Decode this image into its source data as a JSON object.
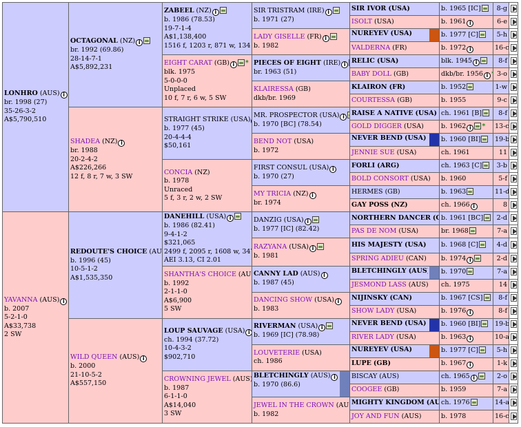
{
  "colors": {
    "male_bg": "#ccccff",
    "female_bg": "#ffcccc",
    "mare_name": "#7711bb",
    "bar_blue": "#2233aa",
    "bar_orange": "#cc5511",
    "bar_slate": "#7080bb"
  },
  "g1": [
    {
      "name": "LONHRO",
      "cty": "(AUS)",
      "sex": "m",
      "bold": true,
      "info": true,
      "pic": true,
      "lines": [
        "br. 1998 (27)",
        "35-26-3-2",
        "A$5,790,510"
      ]
    },
    {
      "name": "YAVANNA",
      "cty": "(AUS)",
      "sex": "f",
      "bold": false,
      "info": true,
      "pic": false,
      "lines": [
        "b. 2007",
        "5-2-1-0",
        "A$33,738",
        "2 SW"
      ]
    }
  ],
  "g2": [
    {
      "name": "OCTAGONAL",
      "cty": "(NZ)",
      "sex": "m",
      "bold": true,
      "info": true,
      "pic": true,
      "lines": [
        "br. 1992 (69.86)",
        "28-14-7-1",
        "A$5,892,231"
      ]
    },
    {
      "name": "SHADEA",
      "cty": "(NZ)",
      "sex": "f",
      "bold": false,
      "info": true,
      "pic": false,
      "lines": [
        "br. 1988",
        "20-2-4-2",
        "A$226,266",
        "12 f, 8 r, 7 w, 3 SW"
      ]
    },
    {
      "name": "REDOUTE'S CHOICE",
      "cty": "(AUS)",
      "sex": "m",
      "bold": true,
      "info": true,
      "pic": false,
      "lines": [
        "b. 1996 (45)",
        "10-5-1-2",
        "A$1,535,350"
      ]
    },
    {
      "name": "WILD QUEEN",
      "cty": "(AUS)",
      "sex": "f",
      "bold": false,
      "info": true,
      "pic": false,
      "lines": [
        "b. 2000",
        "21-10-5-2",
        "A$557,150"
      ]
    }
  ],
  "g3": [
    {
      "name": "ZABEEL",
      "cty": "(NZ)",
      "sex": "m",
      "bold": true,
      "info": true,
      "pic": true,
      "star": false,
      "lines": [
        "b. 1986 (78.53)",
        "19-7-1-4",
        "A$1,138,400",
        "1516 f, 1203 r, 871 w, 134 SW"
      ]
    },
    {
      "name": "EIGHT CARAT",
      "cty": "(GB)",
      "sex": "f",
      "bold": false,
      "info": true,
      "pic": true,
      "star": true,
      "lines": [
        "blk. 1975",
        "5-0-0-0",
        "Unplaced",
        "10 f, 7 r, 6 w, 5 SW"
      ]
    },
    {
      "name": "STRAIGHT STRIKE",
      "cty": "(USA)",
      "sex": "m",
      "bold": false,
      "info": true,
      "pic": false,
      "star": false,
      "lines": [
        "b. 1977 (45)",
        "20-4-4-4",
        "$50,161"
      ]
    },
    {
      "name": "CONCIA",
      "cty": "(NZ)",
      "sex": "f",
      "bold": false,
      "info": false,
      "pic": false,
      "star": false,
      "lines": [
        "b. 1978",
        "Unraced",
        "5 f, 3 r, 2 w, 2 SW"
      ]
    },
    {
      "name": "DANEHILL",
      "cty": "(USA)",
      "sex": "m",
      "bold": true,
      "info": true,
      "pic": true,
      "star": false,
      "lines": [
        "b. 1986 (82.41)",
        "9-4-1-2",
        "$321,065",
        "2499 f, 2095 r, 1608 w, 347 SW",
        "AEI 3.13, CI 2.01"
      ]
    },
    {
      "name": "SHANTHA'S CHOICE",
      "cty": "(AUS)",
      "sex": "f",
      "bold": false,
      "info": true,
      "pic": false,
      "star": false,
      "lines": [
        "b. 1992",
        "2-1-1-0",
        "A$6,900",
        "5 SW"
      ]
    },
    {
      "name": "LOUP SAUVAGE",
      "cty": "(USA)",
      "sex": "m",
      "bold": true,
      "info": true,
      "pic": false,
      "star": false,
      "lines": [
        "ch. 1994 (37.72)",
        "10-4-3-2",
        "$902,710"
      ]
    },
    {
      "name": "CROWNING JEWEL",
      "cty": "(AUS)",
      "sex": "f",
      "bold": false,
      "info": false,
      "pic": false,
      "star": false,
      "lines": [
        "b. 1987",
        "6-1-1-0",
        "A$14,040",
        "3 SW"
      ]
    }
  ],
  "g4": [
    {
      "name": "SIR TRISTRAM",
      "cty": "(IRE)",
      "sex": "m",
      "bold": false,
      "info": true,
      "pic": true,
      "bar": "",
      "lines": [
        "b. 1971 (27)"
      ]
    },
    {
      "name": "LADY GISELLE",
      "cty": "(FR)",
      "sex": "f",
      "bold": false,
      "info": true,
      "pic": true,
      "bar": "",
      "lines": [
        "b. 1982"
      ]
    },
    {
      "name": "PIECES OF EIGHT",
      "cty": "(IRE)",
      "sex": "m",
      "bold": true,
      "info": true,
      "pic": true,
      "bar": "",
      "lines": [
        "br. 1963 (51)"
      ]
    },
    {
      "name": "KLAIRESSA",
      "cty": "(GB)",
      "sex": "f",
      "bold": false,
      "info": false,
      "pic": false,
      "bar": "",
      "lines": [
        "dkb/br. 1969"
      ]
    },
    {
      "name": "MR. PROSPECTOR",
      "cty": "(USA)",
      "sex": "m",
      "bold": false,
      "info": true,
      "pic": true,
      "bar": "",
      "lines": [
        "b. 1970 [BC] (78.54)"
      ]
    },
    {
      "name": "BEND NOT",
      "cty": "(USA)",
      "sex": "f",
      "bold": false,
      "info": false,
      "pic": false,
      "bar": "",
      "lines": [
        "b. 1972"
      ]
    },
    {
      "name": "FIRST CONSUL",
      "cty": "(USA)",
      "sex": "m",
      "bold": false,
      "info": true,
      "pic": false,
      "bar": "",
      "lines": [
        "b. 1970 (27)"
      ]
    },
    {
      "name": "MY TRICIA",
      "cty": "(NZ)",
      "sex": "f",
      "bold": false,
      "info": true,
      "pic": false,
      "bar": "",
      "lines": [
        "br. 1974"
      ]
    },
    {
      "name": "DANZIG",
      "cty": "(USA)",
      "sex": "m",
      "bold": false,
      "info": true,
      "pic": true,
      "bar": "",
      "lines": [
        "b. 1977 [IC] (82.42)"
      ]
    },
    {
      "name": "RAZYANA",
      "cty": "(USA)",
      "sex": "f",
      "bold": false,
      "info": true,
      "pic": true,
      "bar": "",
      "lines": [
        "b. 1981"
      ]
    },
    {
      "name": "CANNY LAD",
      "cty": "(AUS)",
      "sex": "m",
      "bold": true,
      "info": true,
      "pic": false,
      "bar": "",
      "lines": [
        "b. 1987 (45)"
      ]
    },
    {
      "name": "DANCING SHOW",
      "cty": "(USA)",
      "sex": "f",
      "bold": false,
      "info": true,
      "pic": false,
      "bar": "",
      "lines": [
        "b. 1983"
      ]
    },
    {
      "name": "RIVERMAN",
      "cty": "(USA)",
      "sex": "m",
      "bold": true,
      "info": true,
      "pic": true,
      "bar": "",
      "lines": [
        "b. 1969 [IC] (78.98)"
      ]
    },
    {
      "name": "LOUVETERIE",
      "cty": "(USA)",
      "sex": "f",
      "bold": false,
      "info": false,
      "pic": false,
      "bar": "",
      "lines": [
        "ch. 1986"
      ]
    },
    {
      "name": "BLETCHINGLY",
      "cty": "(AUS)",
      "sex": "m",
      "bold": true,
      "info": true,
      "pic": true,
      "bar": "slate",
      "lines": [
        "b. 1970 (86.6)"
      ]
    },
    {
      "name": "JEWEL IN THE CROWN",
      "cty": "(AUS)",
      "sex": "f",
      "bold": false,
      "info": true,
      "pic": false,
      "bar": "",
      "lines": [
        "b. 1982"
      ]
    }
  ],
  "g5": [
    {
      "name": "SIR IVOR",
      "cty": "(USA)",
      "sex": "m",
      "bold": true,
      "info": false,
      "pic": false,
      "star": false,
      "bar": "",
      "detail": "b. 1965 [IC]",
      "dinfo": false,
      "dpic": true,
      "tail": "8-g"
    },
    {
      "name": "ISOLT",
      "cty": "(USA)",
      "sex": "f",
      "bold": false,
      "info": false,
      "pic": false,
      "star": false,
      "bar": "",
      "detail": "b. 1961",
      "dinfo": true,
      "dpic": false,
      "tail": "6-e"
    },
    {
      "name": "NUREYEV",
      "cty": "(USA)",
      "sex": "m",
      "bold": true,
      "info": false,
      "pic": false,
      "star": false,
      "bar": "orange",
      "detail": "b. 1977 [C]",
      "dinfo": false,
      "dpic": true,
      "tail": "5-h"
    },
    {
      "name": "VALDERNA",
      "cty": "(FR)",
      "sex": "f",
      "bold": false,
      "info": false,
      "pic": false,
      "star": false,
      "bar": "",
      "detail": "b. 1972",
      "dinfo": true,
      "dpic": false,
      "tail": "16-c"
    },
    {
      "name": "RELIC",
      "cty": "(USA)",
      "sex": "m",
      "bold": true,
      "info": false,
      "pic": false,
      "star": false,
      "bar": "",
      "detail": "blk. 1945",
      "dinfo": true,
      "dpic": true,
      "tail": "8-f"
    },
    {
      "name": "BABY DOLL",
      "cty": "(GB)",
      "sex": "f",
      "bold": false,
      "info": false,
      "pic": false,
      "star": false,
      "bar": "",
      "detail": "dkb/br. 1956",
      "dinfo": true,
      "dpic": false,
      "dstar": true,
      "tail": "3-o"
    },
    {
      "name": "KLAIRON",
      "cty": "(FR)",
      "sex": "m",
      "bold": true,
      "info": false,
      "pic": false,
      "star": false,
      "bar": "",
      "detail": "b. 1952",
      "dinfo": false,
      "dpic": true,
      "tail": "1-w"
    },
    {
      "name": "COURTESSA",
      "cty": "(GB)",
      "sex": "f",
      "bold": false,
      "info": false,
      "pic": false,
      "star": false,
      "bar": "",
      "detail": "b. 1955",
      "dinfo": false,
      "dpic": false,
      "tail": "9-c"
    },
    {
      "name": "RAISE A NATIVE",
      "cty": "(USA)",
      "sex": "m",
      "bold": true,
      "info": false,
      "pic": false,
      "star": false,
      "bar": "",
      "detail": "ch. 1961 [B]",
      "dinfo": false,
      "dpic": true,
      "tail": "8-f"
    },
    {
      "name": "GOLD DIGGER",
      "cty": "(USA)",
      "sex": "f",
      "bold": false,
      "info": false,
      "pic": false,
      "star": false,
      "bar": "",
      "detail": "b. 1962",
      "dinfo": true,
      "dpic": true,
      "dstar": true,
      "tail": "13-c"
    },
    {
      "name": "NEVER BEND",
      "cty": "(USA)",
      "sex": "m",
      "bold": true,
      "info": false,
      "pic": false,
      "star": false,
      "bar": "blue",
      "detail": "b. 1960 [BI]",
      "dinfo": false,
      "dpic": true,
      "tail": "19-b"
    },
    {
      "name": "JENNIE SUE",
      "cty": "(USA)",
      "sex": "f",
      "bold": false,
      "info": false,
      "pic": false,
      "star": false,
      "bar": "",
      "detail": "ch. 1961",
      "dinfo": false,
      "dpic": false,
      "tail": "11"
    },
    {
      "name": "FORLI",
      "cty": "(ARG)",
      "sex": "m",
      "bold": true,
      "info": false,
      "pic": false,
      "star": false,
      "bar": "",
      "detail": "ch. 1963 [C]",
      "dinfo": false,
      "dpic": true,
      "tail": "3-b"
    },
    {
      "name": "BOLD CONSORT",
      "cty": "(USA)",
      "sex": "f",
      "bold": false,
      "info": false,
      "pic": false,
      "star": false,
      "bar": "",
      "detail": "b. 1960",
      "dinfo": false,
      "dpic": false,
      "tail": "5-f"
    },
    {
      "name": "HERMES",
      "cty": "(GB)",
      "sex": "m",
      "bold": false,
      "info": false,
      "pic": false,
      "star": false,
      "bar": "",
      "detail": "b. 1963",
      "dinfo": false,
      "dpic": true,
      "tail": "11-d"
    },
    {
      "name": "GAY POSS",
      "cty": "(NZ)",
      "sex": "f",
      "bold": true,
      "info": false,
      "pic": false,
      "star": false,
      "bar": "",
      "detail": "ch. 1966",
      "dinfo": true,
      "dpic": false,
      "tail": "8"
    },
    {
      "name": "NORTHERN DANCER",
      "cty": "(CAN)",
      "sex": "m",
      "bold": true,
      "info": false,
      "pic": false,
      "star": false,
      "bar": "",
      "detail": "b. 1961 [BC]",
      "dinfo": false,
      "dpic": true,
      "tail": "2-d"
    },
    {
      "name": "PAS DE NOM",
      "cty": "(USA)",
      "sex": "f",
      "bold": false,
      "info": false,
      "pic": false,
      "star": false,
      "bar": "",
      "detail": "br. 1968",
      "dinfo": false,
      "dpic": true,
      "tail": "7-a"
    },
    {
      "name": "HIS MAJESTY",
      "cty": "(USA)",
      "sex": "m",
      "bold": true,
      "info": false,
      "pic": false,
      "star": false,
      "bar": "",
      "detail": "b. 1968 [C]",
      "dinfo": false,
      "dpic": true,
      "tail": "4-d"
    },
    {
      "name": "SPRING ADIEU",
      "cty": "(CAN)",
      "sex": "f",
      "bold": false,
      "info": false,
      "pic": false,
      "star": false,
      "bar": "",
      "detail": "b. 1974",
      "dinfo": true,
      "dpic": true,
      "tail": "2-d"
    },
    {
      "name": "BLETCHINGLY",
      "cty": "(AUS)",
      "sex": "m",
      "bold": true,
      "info": false,
      "pic": false,
      "star": false,
      "bar": "slate",
      "detail": "b. 1970",
      "dinfo": false,
      "dpic": true,
      "tail": "7-a"
    },
    {
      "name": "JESMOND LASS",
      "cty": "(AUS)",
      "sex": "f",
      "bold": false,
      "info": false,
      "pic": false,
      "star": false,
      "bar": "",
      "detail": "ch. 1975",
      "dinfo": false,
      "dpic": false,
      "tail": "14"
    },
    {
      "name": "NIJINSKY",
      "cty": "(CAN)",
      "sex": "m",
      "bold": true,
      "info": false,
      "pic": false,
      "star": false,
      "bar": "",
      "detail": "b. 1967 [CS]",
      "dinfo": false,
      "dpic": true,
      "tail": "8-f"
    },
    {
      "name": "SHOW LADY",
      "cty": "(USA)",
      "sex": "f",
      "bold": false,
      "info": false,
      "pic": false,
      "star": false,
      "bar": "",
      "detail": "b. 1976",
      "dinfo": true,
      "dpic": false,
      "tail": "8-f"
    },
    {
      "name": "NEVER BEND",
      "cty": "(USA)",
      "sex": "m",
      "bold": true,
      "info": false,
      "pic": false,
      "star": false,
      "bar": "blue",
      "detail": "b. 1960 [BI]",
      "dinfo": false,
      "dpic": true,
      "tail": "19-b"
    },
    {
      "name": "RIVER LADY",
      "cty": "(USA)",
      "sex": "f",
      "bold": false,
      "info": false,
      "pic": false,
      "star": false,
      "bar": "",
      "detail": "b. 1963",
      "dinfo": true,
      "dpic": false,
      "tail": "10-a"
    },
    {
      "name": "NUREYEV",
      "cty": "(USA)",
      "sex": "m",
      "bold": true,
      "info": false,
      "pic": false,
      "star": false,
      "bar": "orange",
      "detail": "b. 1977 [C]",
      "dinfo": false,
      "dpic": true,
      "tail": "5-h"
    },
    {
      "name": "LUPE",
      "cty": "(GB)",
      "sex": "f",
      "bold": true,
      "info": false,
      "pic": false,
      "star": false,
      "bar": "",
      "detail": "b. 1967",
      "dinfo": true,
      "dpic": false,
      "tail": "1-k"
    },
    {
      "name": "BISCAY",
      "cty": "(AUS)",
      "sex": "m",
      "bold": false,
      "info": false,
      "pic": false,
      "star": false,
      "bar": "",
      "detail": "ch. 1965",
      "dinfo": true,
      "dpic": true,
      "tail": "2-o"
    },
    {
      "name": "COOGEE",
      "cty": "(GB)",
      "sex": "f",
      "bold": false,
      "info": false,
      "pic": false,
      "star": false,
      "bar": "",
      "detail": "b. 1959",
      "dinfo": false,
      "dpic": false,
      "tail": "7-a"
    },
    {
      "name": "MIGHTY KINGDOM",
      "cty": "(AUS)",
      "sex": "m",
      "bold": true,
      "info": false,
      "pic": false,
      "star": false,
      "bar": "",
      "detail": "ch. 1976",
      "dinfo": false,
      "dpic": true,
      "tail": "14-a"
    },
    {
      "name": "JOY AND FUN",
      "cty": "(AUS)",
      "sex": "f",
      "bold": false,
      "info": false,
      "pic": false,
      "star": false,
      "bar": "",
      "detail": "b. 1978",
      "dinfo": false,
      "dpic": false,
      "tail": "16-c"
    }
  ]
}
